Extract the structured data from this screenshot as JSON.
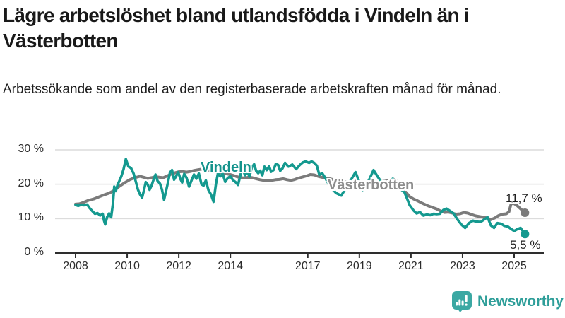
{
  "header": {
    "title": "Lägre arbetslöshet bland utlandsfödda i Vindeln än i Västerbotten",
    "subtitle": "Arbetssökande som andel av den registerbaserade arbetskraften månad för månad."
  },
  "footer": {
    "brand": "Newsworthy"
  },
  "colors": {
    "vindeln": "#14998F",
    "vasterbotten": "#7B7B7B",
    "gridline": "#DCDCDC",
    "axis": "#2E2E2E",
    "brand_teal": "#3BA8A3"
  },
  "chart_data": {
    "type": "line",
    "title": "Lägre arbetslöshet bland utlandsfödda i Vindeln än i Västerbotten",
    "subtitle": "Arbetssökande som andel av den registerbaserade arbetskraften månad för månad.",
    "xlabel": "",
    "ylabel": "",
    "unit": "%",
    "xlim": [
      2008,
      2025.6
    ],
    "ylim": [
      0,
      30
    ],
    "grid": "horizontal",
    "legend_position": "inline-labels",
    "y_ticks": [
      {
        "label": "30 %",
        "value": 30
      },
      {
        "label": "20 %",
        "value": 20
      },
      {
        "label": "10 %",
        "value": 10
      },
      {
        "label": "0 %",
        "value": 0
      }
    ],
    "x_ticks": [
      {
        "label": "2008",
        "value": 2008
      },
      {
        "label": "2010",
        "value": 2010
      },
      {
        "label": "2012",
        "value": 2012
      },
      {
        "label": "2014",
        "value": 2014
      },
      {
        "label": "2017",
        "value": 2017
      },
      {
        "label": "2019",
        "value": 2019
      },
      {
        "label": "2021",
        "value": 2021
      },
      {
        "label": "2023",
        "value": 2023
      },
      {
        "label": "2025",
        "value": 2025
      }
    ],
    "series": [
      {
        "name": "Västerbotten",
        "color": "#7B7B7B",
        "end_label": "11,7 %",
        "end_value": 11.7,
        "points": [
          [
            2008.0,
            14.2
          ],
          [
            2008.15,
            14.3
          ],
          [
            2008.3,
            14.7
          ],
          [
            2008.5,
            15.3
          ],
          [
            2008.7,
            15.7
          ],
          [
            2008.9,
            16.3
          ],
          [
            2009.1,
            16.9
          ],
          [
            2009.3,
            17.4
          ],
          [
            2009.5,
            18.2
          ],
          [
            2009.7,
            19.4
          ],
          [
            2009.9,
            20.4
          ],
          [
            2010.1,
            21.3
          ],
          [
            2010.3,
            21.9
          ],
          [
            2010.5,
            22.3
          ],
          [
            2010.65,
            22.0
          ],
          [
            2010.8,
            21.7
          ],
          [
            2010.95,
            21.9
          ],
          [
            2011.1,
            22.2
          ],
          [
            2011.25,
            22.0
          ],
          [
            2011.4,
            21.9
          ],
          [
            2011.55,
            22.4
          ],
          [
            2011.7,
            22.9
          ],
          [
            2011.85,
            23.3
          ],
          [
            2012.0,
            23.6
          ],
          [
            2012.15,
            23.7
          ],
          [
            2012.3,
            23.5
          ],
          [
            2012.45,
            23.7
          ],
          [
            2012.6,
            24.0
          ],
          [
            2012.75,
            24.2
          ],
          [
            2012.9,
            24.4
          ],
          [
            2013.05,
            24.3
          ],
          [
            2013.2,
            24.0
          ],
          [
            2013.35,
            23.7
          ],
          [
            2013.5,
            23.6
          ],
          [
            2013.65,
            23.4
          ],
          [
            2013.8,
            23.1
          ],
          [
            2013.95,
            22.9
          ],
          [
            2014.1,
            22.6
          ],
          [
            2014.25,
            22.2
          ],
          [
            2014.4,
            21.9
          ],
          [
            2014.55,
            21.8
          ],
          [
            2014.7,
            22.0
          ],
          [
            2014.85,
            21.9
          ],
          [
            2015.0,
            21.6
          ],
          [
            2015.15,
            21.3
          ],
          [
            2015.3,
            21.1
          ],
          [
            2015.45,
            21.0
          ],
          [
            2015.6,
            21.1
          ],
          [
            2015.75,
            21.3
          ],
          [
            2015.9,
            21.4
          ],
          [
            2016.05,
            21.6
          ],
          [
            2016.2,
            21.3
          ],
          [
            2016.35,
            21.1
          ],
          [
            2016.5,
            21.4
          ],
          [
            2016.65,
            21.8
          ],
          [
            2016.8,
            22.1
          ],
          [
            2016.95,
            22.4
          ],
          [
            2017.1,
            22.8
          ],
          [
            2017.25,
            22.7
          ],
          [
            2017.4,
            22.3
          ],
          [
            2017.55,
            22.0
          ],
          [
            2017.7,
            21.8
          ],
          [
            2017.85,
            21.6
          ],
          [
            2018.0,
            21.3
          ],
          [
            2018.2,
            21.0
          ],
          [
            2018.4,
            20.8
          ],
          [
            2018.6,
            20.6
          ],
          [
            2018.8,
            20.5
          ],
          [
            2019.0,
            20.3
          ],
          [
            2019.2,
            20.2
          ],
          [
            2019.4,
            20.4
          ],
          [
            2019.6,
            20.5
          ],
          [
            2019.8,
            20.7
          ],
          [
            2020.0,
            20.9
          ],
          [
            2020.2,
            21.2
          ],
          [
            2020.35,
            21.4
          ],
          [
            2020.5,
            20.6
          ],
          [
            2020.65,
            19.2
          ],
          [
            2020.8,
            17.7
          ],
          [
            2020.95,
            16.4
          ],
          [
            2021.1,
            15.7
          ],
          [
            2021.25,
            15.2
          ],
          [
            2021.4,
            14.6
          ],
          [
            2021.55,
            14.1
          ],
          [
            2021.7,
            13.6
          ],
          [
            2021.85,
            13.2
          ],
          [
            2022.0,
            12.8
          ],
          [
            2022.15,
            12.2
          ],
          [
            2022.3,
            11.8
          ],
          [
            2022.45,
            11.9
          ],
          [
            2022.6,
            11.6
          ],
          [
            2022.75,
            11.3
          ],
          [
            2022.9,
            11.4
          ],
          [
            2023.05,
            11.8
          ],
          [
            2023.2,
            11.6
          ],
          [
            2023.35,
            11.2
          ],
          [
            2023.5,
            10.8
          ],
          [
            2023.65,
            10.6
          ],
          [
            2023.8,
            10.4
          ],
          [
            2023.95,
            10.2
          ],
          [
            2024.1,
            9.7
          ],
          [
            2024.25,
            10.2
          ],
          [
            2024.4,
            10.9
          ],
          [
            2024.55,
            11.3
          ],
          [
            2024.7,
            11.4
          ],
          [
            2024.8,
            12.0
          ],
          [
            2024.88,
            14.2
          ],
          [
            2024.96,
            14.5
          ],
          [
            2025.1,
            13.9
          ],
          [
            2025.2,
            13.2
          ],
          [
            2025.3,
            12.5
          ],
          [
            2025.42,
            11.7
          ]
        ]
      },
      {
        "name": "Vindeln",
        "color": "#14998F",
        "end_label": "5,5 %",
        "end_value": 5.5,
        "points": [
          [
            2008.0,
            14.0
          ],
          [
            2008.1,
            13.7
          ],
          [
            2008.2,
            14.0
          ],
          [
            2008.33,
            13.9
          ],
          [
            2008.45,
            14.1
          ],
          [
            2008.55,
            13.0
          ],
          [
            2008.65,
            12.2
          ],
          [
            2008.75,
            11.4
          ],
          [
            2008.85,
            11.6
          ],
          [
            2008.95,
            10.9
          ],
          [
            2009.05,
            11.4
          ],
          [
            2009.1,
            9.5
          ],
          [
            2009.15,
            8.3
          ],
          [
            2009.22,
            10.4
          ],
          [
            2009.3,
            11.5
          ],
          [
            2009.38,
            10.4
          ],
          [
            2009.45,
            14.5
          ],
          [
            2009.5,
            19.3
          ],
          [
            2009.56,
            18.0
          ],
          [
            2009.63,
            19.8
          ],
          [
            2009.7,
            21.0
          ],
          [
            2009.78,
            22.4
          ],
          [
            2009.86,
            24.3
          ],
          [
            2009.95,
            27.3
          ],
          [
            2010.05,
            25.1
          ],
          [
            2010.15,
            24.7
          ],
          [
            2010.25,
            23.1
          ],
          [
            2010.33,
            20.9
          ],
          [
            2010.42,
            18.4
          ],
          [
            2010.5,
            17.0
          ],
          [
            2010.58,
            16.1
          ],
          [
            2010.65,
            18.2
          ],
          [
            2010.72,
            20.6
          ],
          [
            2010.8,
            19.9
          ],
          [
            2010.87,
            18.4
          ],
          [
            2010.95,
            19.7
          ],
          [
            2011.03,
            21.5
          ],
          [
            2011.1,
            22.8
          ],
          [
            2011.18,
            20.9
          ],
          [
            2011.27,
            20.2
          ],
          [
            2011.35,
            18.4
          ],
          [
            2011.43,
            15.5
          ],
          [
            2011.5,
            17.8
          ],
          [
            2011.58,
            20.5
          ],
          [
            2011.66,
            23.4
          ],
          [
            2011.74,
            24.1
          ],
          [
            2011.82,
            21.3
          ],
          [
            2011.9,
            22.4
          ],
          [
            2011.98,
            23.5
          ],
          [
            2012.06,
            21.6
          ],
          [
            2012.13,
            20.5
          ],
          [
            2012.21,
            23.0
          ],
          [
            2012.3,
            21.9
          ],
          [
            2012.4,
            19.3
          ],
          [
            2012.5,
            21.2
          ],
          [
            2012.59,
            22.8
          ],
          [
            2012.68,
            21.6
          ],
          [
            2012.78,
            23.1
          ],
          [
            2012.88,
            20.0
          ],
          [
            2012.96,
            19.6
          ],
          [
            2013.05,
            21.1
          ],
          [
            2013.15,
            18.3
          ],
          [
            2013.25,
            17.0
          ],
          [
            2013.35,
            14.9
          ],
          [
            2013.44,
            20.0
          ],
          [
            2013.52,
            23.2
          ],
          [
            2013.61,
            22.3
          ],
          [
            2013.7,
            23.1
          ],
          [
            2013.8,
            20.7
          ],
          [
            2013.9,
            21.8
          ],
          [
            2014.0,
            22.3
          ],
          [
            2014.1,
            21.2
          ],
          [
            2014.2,
            20.6
          ],
          [
            2014.3,
            19.8
          ],
          [
            2014.4,
            23.0
          ],
          [
            2014.48,
            24.4
          ],
          [
            2014.57,
            22.6
          ],
          [
            2014.66,
            23.7
          ],
          [
            2014.74,
            22.2
          ],
          [
            2014.83,
            24.8
          ],
          [
            2014.92,
            25.8
          ],
          [
            2015.0,
            23.9
          ],
          [
            2015.08,
            23.2
          ],
          [
            2015.16,
            23.9
          ],
          [
            2015.24,
            22.6
          ],
          [
            2015.32,
            25.1
          ],
          [
            2015.41,
            24.1
          ],
          [
            2015.5,
            25.2
          ],
          [
            2015.58,
            23.6
          ],
          [
            2015.67,
            24.1
          ],
          [
            2015.76,
            25.9
          ],
          [
            2015.85,
            25.6
          ],
          [
            2015.93,
            23.9
          ],
          [
            2016.02,
            24.6
          ],
          [
            2016.12,
            26.2
          ],
          [
            2016.25,
            25.1
          ],
          [
            2016.4,
            25.7
          ],
          [
            2016.55,
            24.4
          ],
          [
            2016.68,
            25.5
          ],
          [
            2016.8,
            26.3
          ],
          [
            2016.92,
            26.6
          ],
          [
            2017.05,
            26.2
          ],
          [
            2017.15,
            26.6
          ],
          [
            2017.25,
            26.2
          ],
          [
            2017.35,
            25.4
          ],
          [
            2017.45,
            22.7
          ],
          [
            2017.56,
            23.2
          ],
          [
            2017.68,
            21.8
          ],
          [
            2017.8,
            20.2
          ],
          [
            2017.95,
            18.6
          ],
          [
            2018.1,
            17.4
          ],
          [
            2018.3,
            16.7
          ],
          [
            2018.5,
            19.2
          ],
          [
            2018.7,
            21.6
          ],
          [
            2018.85,
            23.5
          ],
          [
            2019.0,
            20.6
          ],
          [
            2019.12,
            18.3
          ],
          [
            2019.25,
            19.6
          ],
          [
            2019.4,
            21.6
          ],
          [
            2019.55,
            24.1
          ],
          [
            2019.7,
            22.3
          ],
          [
            2019.85,
            20.7
          ],
          [
            2020.0,
            20.2
          ],
          [
            2020.15,
            20.8
          ],
          [
            2020.3,
            21.6
          ],
          [
            2020.45,
            20.0
          ],
          [
            2020.6,
            18.6
          ],
          [
            2020.75,
            17.6
          ],
          [
            2020.85,
            15.8
          ],
          [
            2020.95,
            13.9
          ],
          [
            2021.1,
            12.4
          ],
          [
            2021.22,
            11.5
          ],
          [
            2021.35,
            11.9
          ],
          [
            2021.48,
            10.9
          ],
          [
            2021.62,
            11.2
          ],
          [
            2021.75,
            11.0
          ],
          [
            2021.88,
            11.4
          ],
          [
            2022.0,
            11.3
          ],
          [
            2022.12,
            11.4
          ],
          [
            2022.25,
            12.5
          ],
          [
            2022.38,
            12.9
          ],
          [
            2022.5,
            12.3
          ],
          [
            2022.65,
            11.5
          ],
          [
            2022.8,
            9.8
          ],
          [
            2022.95,
            8.3
          ],
          [
            2023.1,
            7.3
          ],
          [
            2023.25,
            8.7
          ],
          [
            2023.4,
            9.4
          ],
          [
            2023.55,
            9.1
          ],
          [
            2023.7,
            9.0
          ],
          [
            2023.85,
            9.8
          ],
          [
            2023.97,
            10.4
          ],
          [
            2024.1,
            8.0
          ],
          [
            2024.22,
            7.3
          ],
          [
            2024.35,
            8.7
          ],
          [
            2024.5,
            8.5
          ],
          [
            2024.62,
            7.9
          ],
          [
            2024.75,
            7.7
          ],
          [
            2024.88,
            7.0
          ],
          [
            2025.0,
            6.4
          ],
          [
            2025.12,
            6.9
          ],
          [
            2025.25,
            7.3
          ],
          [
            2025.35,
            6.2
          ],
          [
            2025.42,
            5.5
          ]
        ]
      }
    ]
  }
}
